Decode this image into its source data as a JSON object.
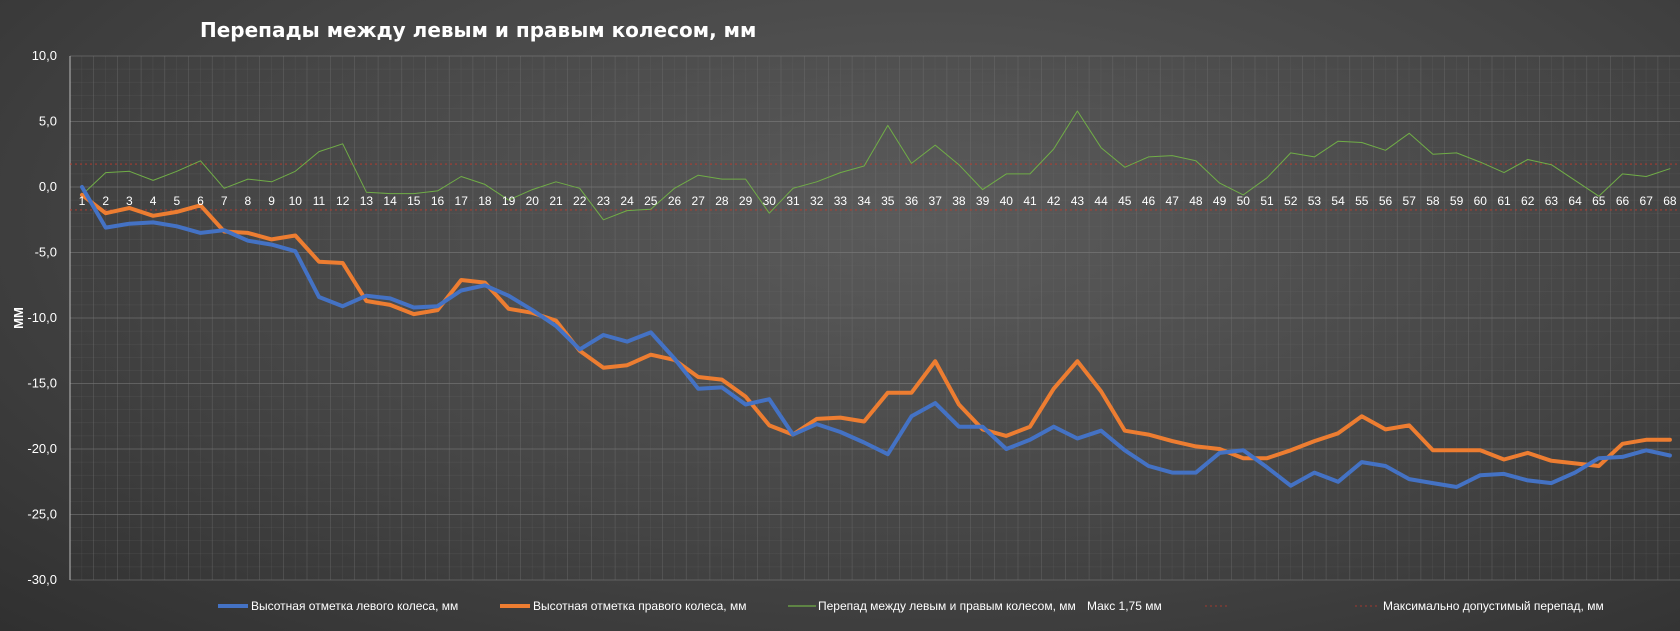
{
  "chart_data": {
    "type": "line",
    "title": "Перепады между левым и правым колесом, мм",
    "ylabel": "ММ",
    "ylim": [
      -30,
      10
    ],
    "ytick_step": 5,
    "ytick_labels": [
      "10,0",
      "5,0",
      "0,0",
      "-5,0",
      "-10,0",
      "-15,0",
      "-20,0",
      "-25,0",
      "-30,0"
    ],
    "x": [
      1,
      2,
      3,
      4,
      5,
      6,
      7,
      8,
      9,
      10,
      11,
      12,
      13,
      14,
      15,
      16,
      17,
      18,
      19,
      20,
      21,
      22,
      23,
      24,
      25,
      26,
      27,
      28,
      29,
      30,
      31,
      32,
      33,
      34,
      35,
      36,
      37,
      38,
      39,
      40,
      41,
      42,
      43,
      44,
      45,
      46,
      47,
      48,
      49,
      50,
      51,
      52,
      53,
      54,
      55,
      56,
      57,
      58,
      59,
      60,
      61,
      62,
      63,
      64,
      65,
      66,
      67,
      68
    ],
    "grid": true,
    "legend_position": "bottom",
    "series": [
      {
        "name": "Высотная отметка левого колеса, мм",
        "color": "#4472C4",
        "width": 4,
        "values": [
          0.0,
          -3.1,
          -2.8,
          -2.7,
          -3.0,
          -3.5,
          -3.3,
          -4.1,
          -4.4,
          -4.9,
          -8.4,
          -9.1,
          -8.3,
          -8.5,
          -9.2,
          -9.1,
          -7.9,
          -7.5,
          -8.3,
          -9.4,
          -10.6,
          -12.4,
          -11.3,
          -11.8,
          -11.1,
          -13.1,
          -15.4,
          -15.3,
          -16.6,
          -16.2,
          -18.9,
          -18.1,
          -18.7,
          -19.5,
          -20.4,
          -17.5,
          -16.5,
          -18.3,
          -18.3,
          -20.0,
          -19.3,
          -18.3,
          -19.2,
          -18.6,
          -20.1,
          -21.3,
          -21.8,
          -21.8,
          -20.3,
          -20.1,
          -21.4,
          -22.8,
          -21.8,
          -22.5,
          -21.0,
          -21.3,
          -22.3,
          -22.6,
          -22.9,
          -22.0,
          -21.9,
          -22.4,
          -22.6,
          -21.8,
          -20.7,
          -20.6,
          -20.1,
          -20.5
        ]
      },
      {
        "name": "Высотная отметка правого колеса, мм",
        "color": "#ED7D31",
        "width": 4,
        "values": [
          -0.6,
          -2.0,
          -1.6,
          -2.2,
          -1.9,
          -1.4,
          -3.4,
          -3.5,
          -4.0,
          -3.7,
          -5.7,
          -5.8,
          -8.7,
          -9.0,
          -9.7,
          -9.4,
          -7.1,
          -7.3,
          -9.3,
          -9.6,
          -10.2,
          -12.5,
          -13.8,
          -13.6,
          -12.8,
          -13.2,
          -14.5,
          -14.7,
          -16.0,
          -18.2,
          -18.9,
          -17.7,
          -17.6,
          -17.9,
          -15.7,
          -15.7,
          -13.3,
          -16.6,
          -18.5,
          -19.0,
          -18.3,
          -15.4,
          -13.3,
          -15.6,
          -18.6,
          -18.9,
          -19.4,
          -19.8,
          -20.0,
          -20.7,
          -20.7,
          -20.1,
          -19.4,
          -18.8,
          -17.5,
          -18.5,
          -18.2,
          -20.1,
          -20.1,
          -20.1,
          -20.8,
          -20.3,
          -20.9,
          -21.1,
          -21.3,
          -19.6,
          -19.3,
          -19.3
        ]
      },
      {
        "name": "Перепад между левым и правым колесом, мм",
        "color": "#70AD47",
        "width": 1,
        "values": [
          -0.6,
          1.1,
          1.2,
          0.5,
          1.2,
          2.0,
          -0.1,
          0.6,
          0.4,
          1.2,
          2.7,
          3.3,
          -0.4,
          -0.5,
          -0.5,
          -0.3,
          0.8,
          0.2,
          -1.0,
          -0.2,
          0.4,
          -0.1,
          -2.5,
          -1.8,
          -1.7,
          -0.1,
          0.9,
          0.6,
          0.6,
          -2.0,
          -0.1,
          0.4,
          1.1,
          1.6,
          4.7,
          1.8,
          3.2,
          1.7,
          -0.2,
          1.0,
          1.0,
          2.9,
          5.8,
          3.0,
          1.5,
          2.3,
          2.4,
          2.0,
          0.3,
          -0.6,
          0.7,
          2.6,
          2.3,
          3.5,
          3.4,
          2.8,
          4.1,
          2.5,
          2.6,
          1.9,
          1.1,
          2.1,
          1.7,
          0.5,
          -0.7,
          1.0,
          0.8,
          1.4
        ]
      }
    ],
    "limit_lines": {
      "name": "Максимально допустимый перепад, мм",
      "color": "#C0392B",
      "values": [
        1.75,
        -1.75
      ]
    },
    "legend_extra": "Макс  1,75 мм"
  }
}
